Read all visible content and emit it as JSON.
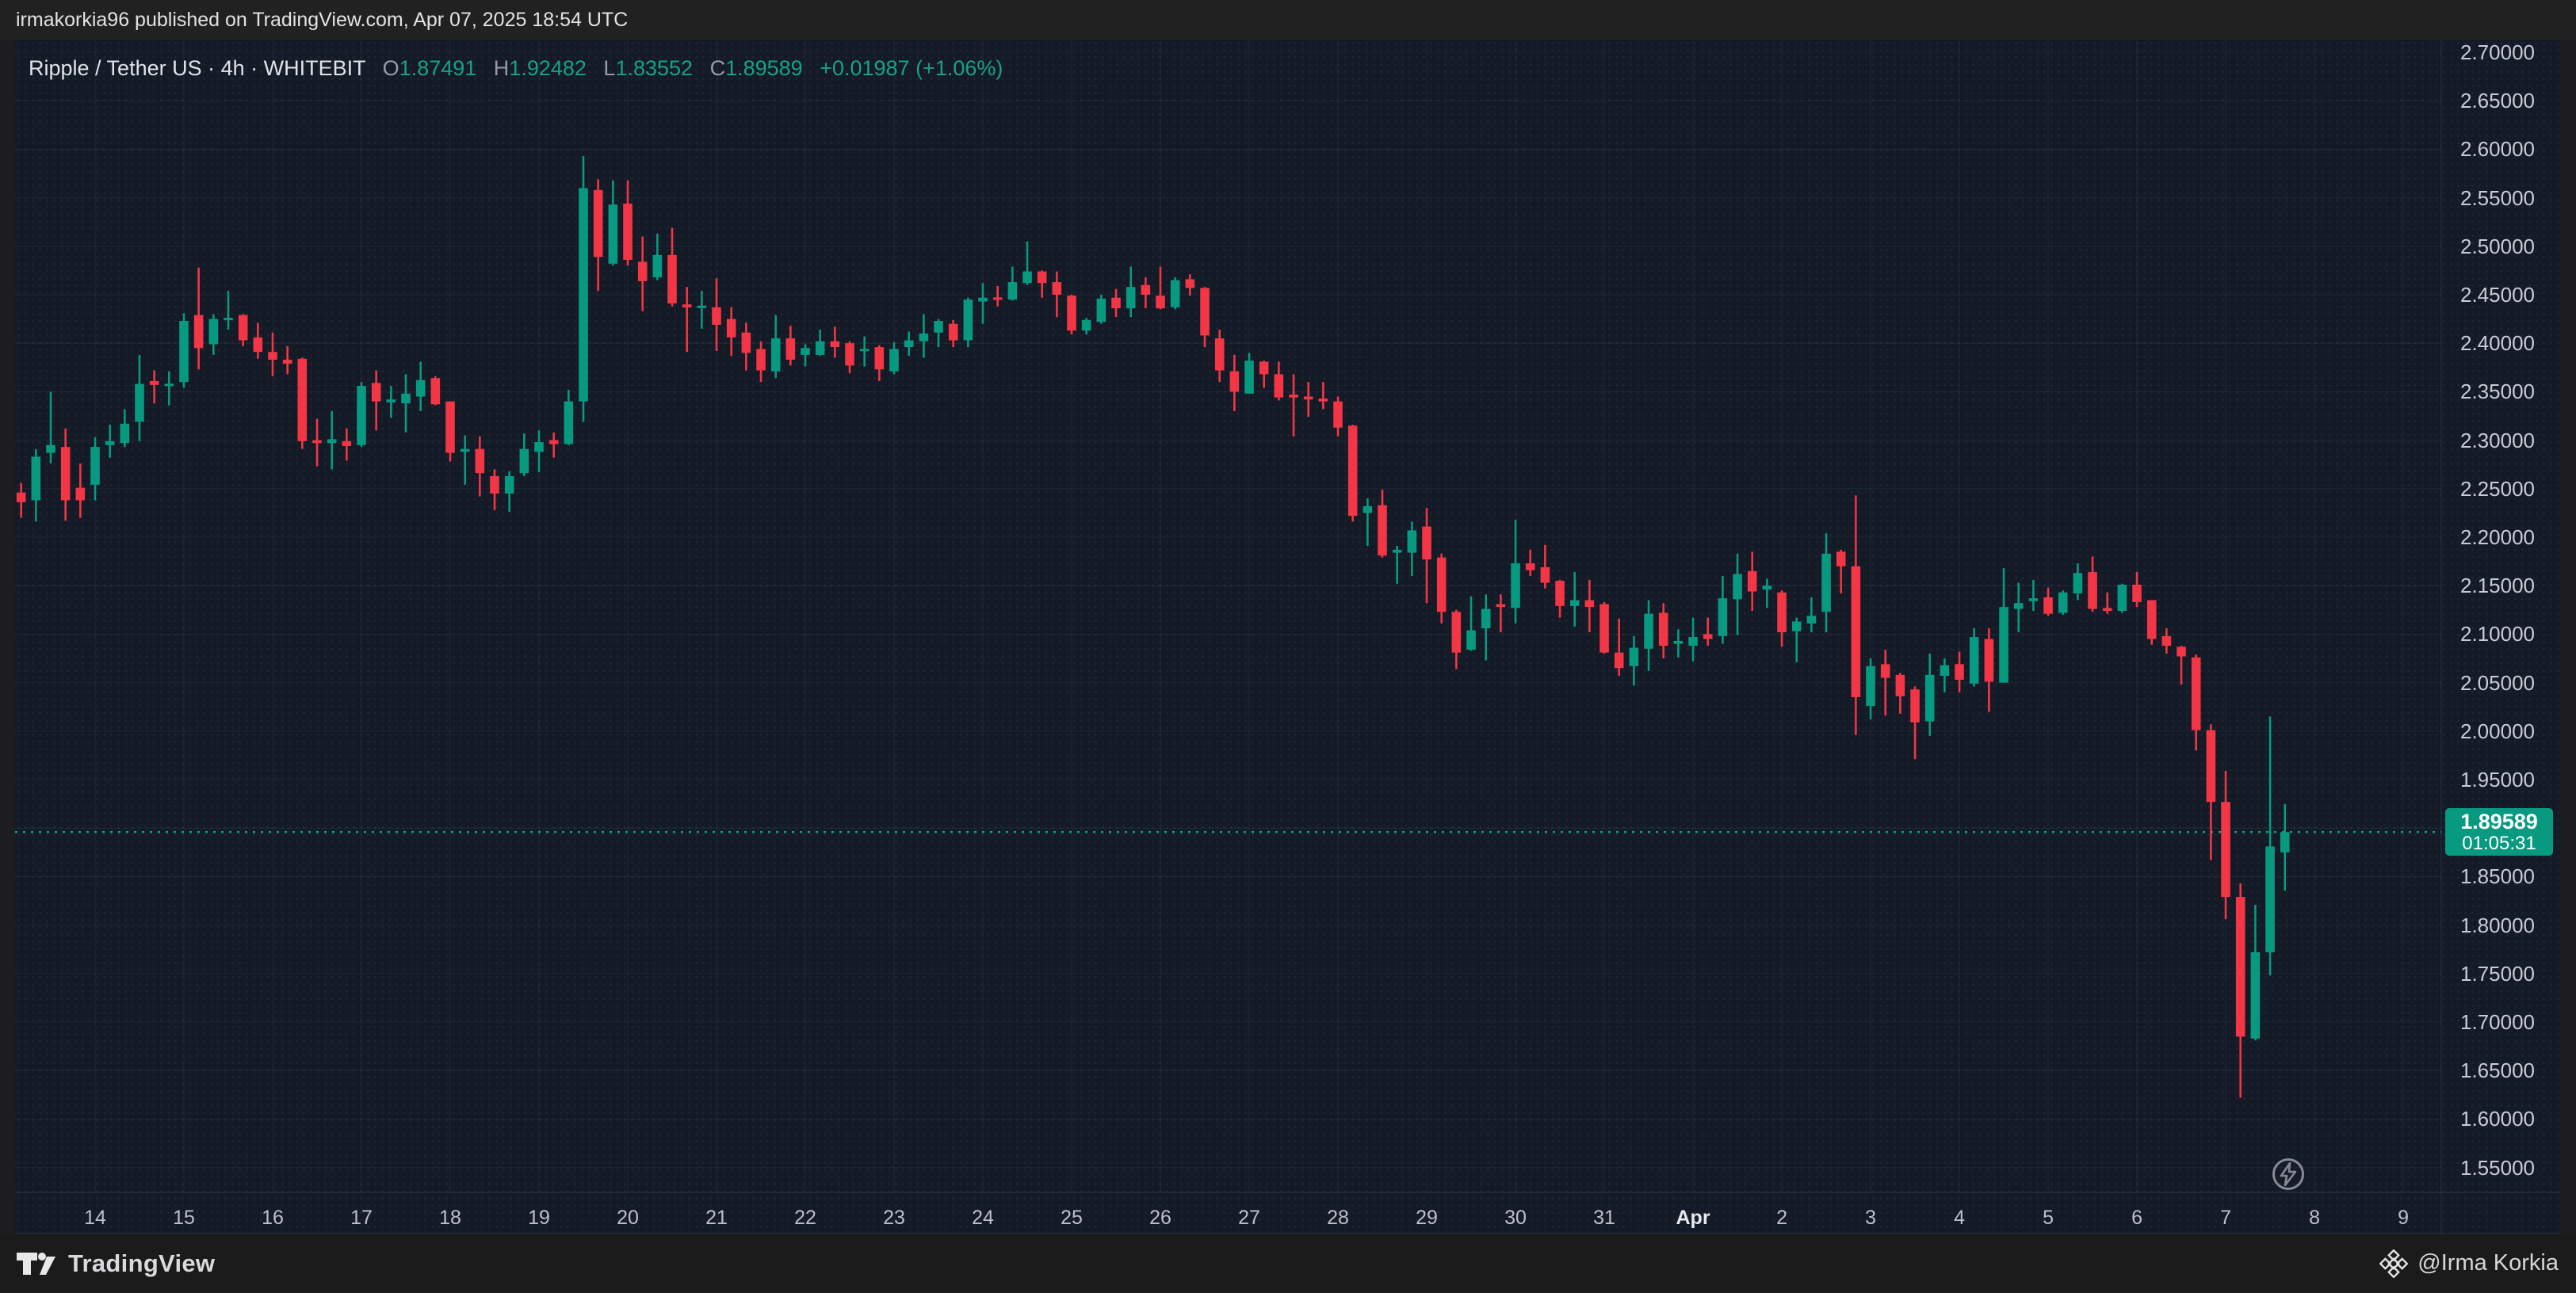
{
  "topbar": {
    "text": "irmakorkia96 published on TradingView.com, Apr 07, 2025 18:54 UTC"
  },
  "legend": {
    "title": "Ripple / Tether US · 4h · WHITEBIT",
    "o_label": "O",
    "o_value": "1.87491",
    "h_label": "H",
    "h_value": "1.92482",
    "l_label": "L",
    "l_value": "1.83552",
    "c_label": "C",
    "c_value": "1.89589",
    "change": "+0.01987 (+1.06%)"
  },
  "last_price": {
    "value": "1.89589",
    "countdown": "01:05:31"
  },
  "footer": {
    "brand": "TradingView",
    "credit": "@Irma Korkia"
  },
  "colors": {
    "up": "#089981",
    "down": "#f23645",
    "badge": "#089981",
    "grid": "rgba(151,166,202,0.10)",
    "axis_sep": "rgba(151,166,202,0.18)",
    "last_price_line": "#0aa487",
    "panel_bg": "#141a26"
  },
  "icons": {
    "flash": "lightning-icon",
    "brand": "tradingview-logo",
    "credit": "diamond-logo"
  },
  "chart_data": {
    "type": "candlestick",
    "title": "Ripple / Tether US",
    "exchange": "WHITEBIT",
    "interval": "4h",
    "start": "Mar 13 00:00 UTC",
    "end": "Apr 7 16:00 UTC",
    "ylim": [
      1.52,
      2.72
    ],
    "grid": true,
    "price_axis_labels": [
      "2.70000",
      "2.65000",
      "2.60000",
      "2.55000",
      "2.50000",
      "2.45000",
      "2.40000",
      "2.35000",
      "2.30000",
      "2.25000",
      "2.20000",
      "2.15000",
      "2.10000",
      "2.05000",
      "2.00000",
      "1.95000",
      "1.90000",
      "1.85000",
      "1.80000",
      "1.75000",
      "1.70000",
      "1.65000",
      "1.60000",
      "1.55000"
    ],
    "time_axis_labels": [
      "14",
      "15",
      "16",
      "17",
      "18",
      "19",
      "20",
      "21",
      "22",
      "23",
      "24",
      "25",
      "26",
      "27",
      "28",
      "29",
      "30",
      "31",
      "Apr",
      "2",
      "3",
      "4",
      "5",
      "6",
      "7",
      "8",
      "9"
    ],
    "candles_format": [
      "open",
      "high",
      "low",
      "close"
    ],
    "candles": [
      [
        2.25,
        2.258,
        2.236,
        2.244
      ],
      [
        2.246,
        2.256,
        2.22,
        2.236
      ],
      [
        2.238,
        2.291,
        2.216,
        2.283
      ],
      [
        2.287,
        2.35,
        2.276,
        2.295
      ],
      [
        2.293,
        2.312,
        2.217,
        2.238
      ],
      [
        2.251,
        2.276,
        2.22,
        2.238
      ],
      [
        2.254,
        2.303,
        2.238,
        2.293
      ],
      [
        2.295,
        2.316,
        2.282,
        2.299
      ],
      [
        2.297,
        2.332,
        2.293,
        2.317
      ],
      [
        2.319,
        2.388,
        2.299,
        2.358
      ],
      [
        2.361,
        2.372,
        2.338,
        2.357
      ],
      [
        2.356,
        2.371,
        2.336,
        2.358
      ],
      [
        2.36,
        2.431,
        2.354,
        2.423
      ],
      [
        2.429,
        2.478,
        2.373,
        2.395
      ],
      [
        2.399,
        2.43,
        2.388,
        2.425
      ],
      [
        2.424,
        2.454,
        2.414,
        2.426
      ],
      [
        2.429,
        2.43,
        2.397,
        2.403
      ],
      [
        2.406,
        2.421,
        2.384,
        2.391
      ],
      [
        2.391,
        2.411,
        2.366,
        2.383
      ],
      [
        2.383,
        2.397,
        2.368,
        2.379
      ],
      [
        2.384,
        2.385,
        2.291,
        2.299
      ],
      [
        2.3,
        2.322,
        2.273,
        2.297
      ],
      [
        2.297,
        2.33,
        2.27,
        2.301
      ],
      [
        2.299,
        2.312,
        2.279,
        2.294
      ],
      [
        2.295,
        2.36,
        2.293,
        2.356
      ],
      [
        2.359,
        2.372,
        2.31,
        2.34
      ],
      [
        2.339,
        2.356,
        2.323,
        2.342
      ],
      [
        2.338,
        2.368,
        2.308,
        2.348
      ],
      [
        2.345,
        2.381,
        2.33,
        2.362
      ],
      [
        2.364,
        2.366,
        2.336,
        2.337
      ],
      [
        2.34,
        2.34,
        2.278,
        2.287
      ],
      [
        2.288,
        2.305,
        2.254,
        2.291
      ],
      [
        2.291,
        2.304,
        2.242,
        2.266
      ],
      [
        2.263,
        2.27,
        2.228,
        2.245
      ],
      [
        2.245,
        2.268,
        2.226,
        2.263
      ],
      [
        2.266,
        2.307,
        2.263,
        2.291
      ],
      [
        2.288,
        2.31,
        2.267,
        2.298
      ],
      [
        2.3,
        2.308,
        2.282,
        2.296
      ],
      [
        2.296,
        2.352,
        2.295,
        2.34
      ],
      [
        2.34,
        2.593,
        2.319,
        2.56
      ],
      [
        2.558,
        2.569,
        2.454,
        2.489
      ],
      [
        2.482,
        2.568,
        2.48,
        2.543
      ],
      [
        2.544,
        2.568,
        2.48,
        2.486
      ],
      [
        2.484,
        2.51,
        2.433,
        2.464
      ],
      [
        2.468,
        2.513,
        2.465,
        2.491
      ],
      [
        2.491,
        2.519,
        2.438,
        2.441
      ],
      [
        2.44,
        2.458,
        2.391,
        2.437
      ],
      [
        2.437,
        2.454,
        2.415,
        2.438
      ],
      [
        2.437,
        2.467,
        2.392,
        2.419
      ],
      [
        2.425,
        2.437,
        2.387,
        2.406
      ],
      [
        2.411,
        2.421,
        2.372,
        2.39
      ],
      [
        2.394,
        2.402,
        2.36,
        2.372
      ],
      [
        2.371,
        2.429,
        2.364,
        2.405
      ],
      [
        2.405,
        2.418,
        2.377,
        2.383
      ],
      [
        2.388,
        2.399,
        2.376,
        2.395
      ],
      [
        2.388,
        2.414,
        2.387,
        2.402
      ],
      [
        2.402,
        2.417,
        2.385,
        2.396
      ],
      [
        2.4,
        2.402,
        2.369,
        2.377
      ],
      [
        2.392,
        2.407,
        2.376,
        2.394
      ],
      [
        2.396,
        2.398,
        2.361,
        2.373
      ],
      [
        2.371,
        2.401,
        2.368,
        2.394
      ],
      [
        2.396,
        2.412,
        2.387,
        2.403
      ],
      [
        2.402,
        2.43,
        2.385,
        2.41
      ],
      [
        2.411,
        2.425,
        2.396,
        2.423
      ],
      [
        2.42,
        2.424,
        2.396,
        2.403
      ],
      [
        2.403,
        2.447,
        2.396,
        2.445
      ],
      [
        2.443,
        2.462,
        2.42,
        2.447
      ],
      [
        2.447,
        2.459,
        2.438,
        2.445
      ],
      [
        2.445,
        2.479,
        2.444,
        2.463
      ],
      [
        2.462,
        2.505,
        2.46,
        2.474
      ],
      [
        2.474,
        2.475,
        2.447,
        2.462
      ],
      [
        2.463,
        2.474,
        2.427,
        2.45
      ],
      [
        2.449,
        2.45,
        2.409,
        2.413
      ],
      [
        2.413,
        2.426,
        2.409,
        2.424
      ],
      [
        2.422,
        2.45,
        2.42,
        2.446
      ],
      [
        2.447,
        2.456,
        2.427,
        2.436
      ],
      [
        2.436,
        2.479,
        2.427,
        2.458
      ],
      [
        2.46,
        2.468,
        2.436,
        2.45
      ],
      [
        2.449,
        2.479,
        2.435,
        2.436
      ],
      [
        2.437,
        2.468,
        2.435,
        2.465
      ],
      [
        2.466,
        2.471,
        2.449,
        2.457
      ],
      [
        2.457,
        2.458,
        2.396,
        2.408
      ],
      [
        2.405,
        2.414,
        2.36,
        2.372
      ],
      [
        2.371,
        2.388,
        2.33,
        2.35
      ],
      [
        2.348,
        2.39,
        2.348,
        2.382
      ],
      [
        2.381,
        2.382,
        2.354,
        2.368
      ],
      [
        2.368,
        2.381,
        2.341,
        2.344
      ],
      [
        2.347,
        2.368,
        2.304,
        2.344
      ],
      [
        2.345,
        2.36,
        2.324,
        2.342
      ],
      [
        2.343,
        2.36,
        2.332,
        2.34
      ],
      [
        2.34,
        2.345,
        2.304,
        2.313
      ],
      [
        2.315,
        2.316,
        2.216,
        2.222
      ],
      [
        2.225,
        2.24,
        2.191,
        2.232
      ],
      [
        2.233,
        2.249,
        2.179,
        2.181
      ],
      [
        2.184,
        2.191,
        2.152,
        2.187
      ],
      [
        2.184,
        2.216,
        2.16,
        2.207
      ],
      [
        2.211,
        2.23,
        2.132,
        2.177
      ],
      [
        2.179,
        2.183,
        2.111,
        2.123
      ],
      [
        2.123,
        2.125,
        2.064,
        2.081
      ],
      [
        2.084,
        2.139,
        2.083,
        2.104
      ],
      [
        2.106,
        2.141,
        2.073,
        2.126
      ],
      [
        2.131,
        2.141,
        2.102,
        2.128
      ],
      [
        2.127,
        2.218,
        2.111,
        2.173
      ],
      [
        2.173,
        2.187,
        2.16,
        2.166
      ],
      [
        2.169,
        2.192,
        2.147,
        2.153
      ],
      [
        2.155,
        2.156,
        2.117,
        2.129
      ],
      [
        2.129,
        2.164,
        2.108,
        2.135
      ],
      [
        2.135,
        2.156,
        2.102,
        2.128
      ],
      [
        2.131,
        2.133,
        2.08,
        2.081
      ],
      [
        2.081,
        2.116,
        2.057,
        2.065
      ],
      [
        2.067,
        2.098,
        2.047,
        2.086
      ],
      [
        2.085,
        2.135,
        2.062,
        2.121
      ],
      [
        2.122,
        2.132,
        2.075,
        2.088
      ],
      [
        2.09,
        2.105,
        2.076,
        2.093
      ],
      [
        2.088,
        2.117,
        2.072,
        2.097
      ],
      [
        2.1,
        2.117,
        2.088,
        2.095
      ],
      [
        2.098,
        2.16,
        2.09,
        2.137
      ],
      [
        2.136,
        2.183,
        2.099,
        2.162
      ],
      [
        2.165,
        2.185,
        2.124,
        2.144
      ],
      [
        2.146,
        2.157,
        2.127,
        2.15
      ],
      [
        2.143,
        2.145,
        2.087,
        2.102
      ],
      [
        2.103,
        2.117,
        2.071,
        2.113
      ],
      [
        2.111,
        2.138,
        2.102,
        2.119
      ],
      [
        2.123,
        2.204,
        2.102,
        2.183
      ],
      [
        2.185,
        2.187,
        2.142,
        2.17
      ],
      [
        2.17,
        2.243,
        1.996,
        2.035
      ],
      [
        2.026,
        2.075,
        2.012,
        2.067
      ],
      [
        2.069,
        2.084,
        2.016,
        2.055
      ],
      [
        2.058,
        2.06,
        2.018,
        2.036
      ],
      [
        2.043,
        2.046,
        1.971,
        2.009
      ],
      [
        2.01,
        2.08,
        1.995,
        2.058
      ],
      [
        2.057,
        2.075,
        2.04,
        2.068
      ],
      [
        2.069,
        2.082,
        2.04,
        2.053
      ],
      [
        2.049,
        2.106,
        2.046,
        2.097
      ],
      [
        2.095,
        2.106,
        2.02,
        2.051
      ],
      [
        2.05,
        2.168,
        2.05,
        2.128
      ],
      [
        2.126,
        2.153,
        2.102,
        2.132
      ],
      [
        2.134,
        2.156,
        2.124,
        2.137
      ],
      [
        2.138,
        2.148,
        2.119,
        2.121
      ],
      [
        2.122,
        2.145,
        2.12,
        2.143
      ],
      [
        2.142,
        2.173,
        2.135,
        2.163
      ],
      [
        2.164,
        2.18,
        2.123,
        2.126
      ],
      [
        2.127,
        2.143,
        2.121,
        2.124
      ],
      [
        2.124,
        2.152,
        2.122,
        2.151
      ],
      [
        2.151,
        2.164,
        2.128,
        2.133
      ],
      [
        2.135,
        2.135,
        2.089,
        2.095
      ],
      [
        2.098,
        2.106,
        2.08,
        2.088
      ],
      [
        2.087,
        2.088,
        2.048,
        2.077
      ],
      [
        2.076,
        2.079,
        1.98,
        2.001
      ],
      [
        2.001,
        2.007,
        1.867,
        1.927
      ],
      [
        1.927,
        1.959,
        1.806,
        1.829
      ],
      [
        1.829,
        1.843,
        1.622,
        1.685
      ],
      [
        1.683,
        1.821,
        1.681,
        1.772
      ],
      [
        1.772,
        2.015,
        1.748,
        1.881
      ],
      [
        1.87491,
        1.92482,
        1.83552,
        1.89589
      ]
    ],
    "last_close": 1.89589
  }
}
